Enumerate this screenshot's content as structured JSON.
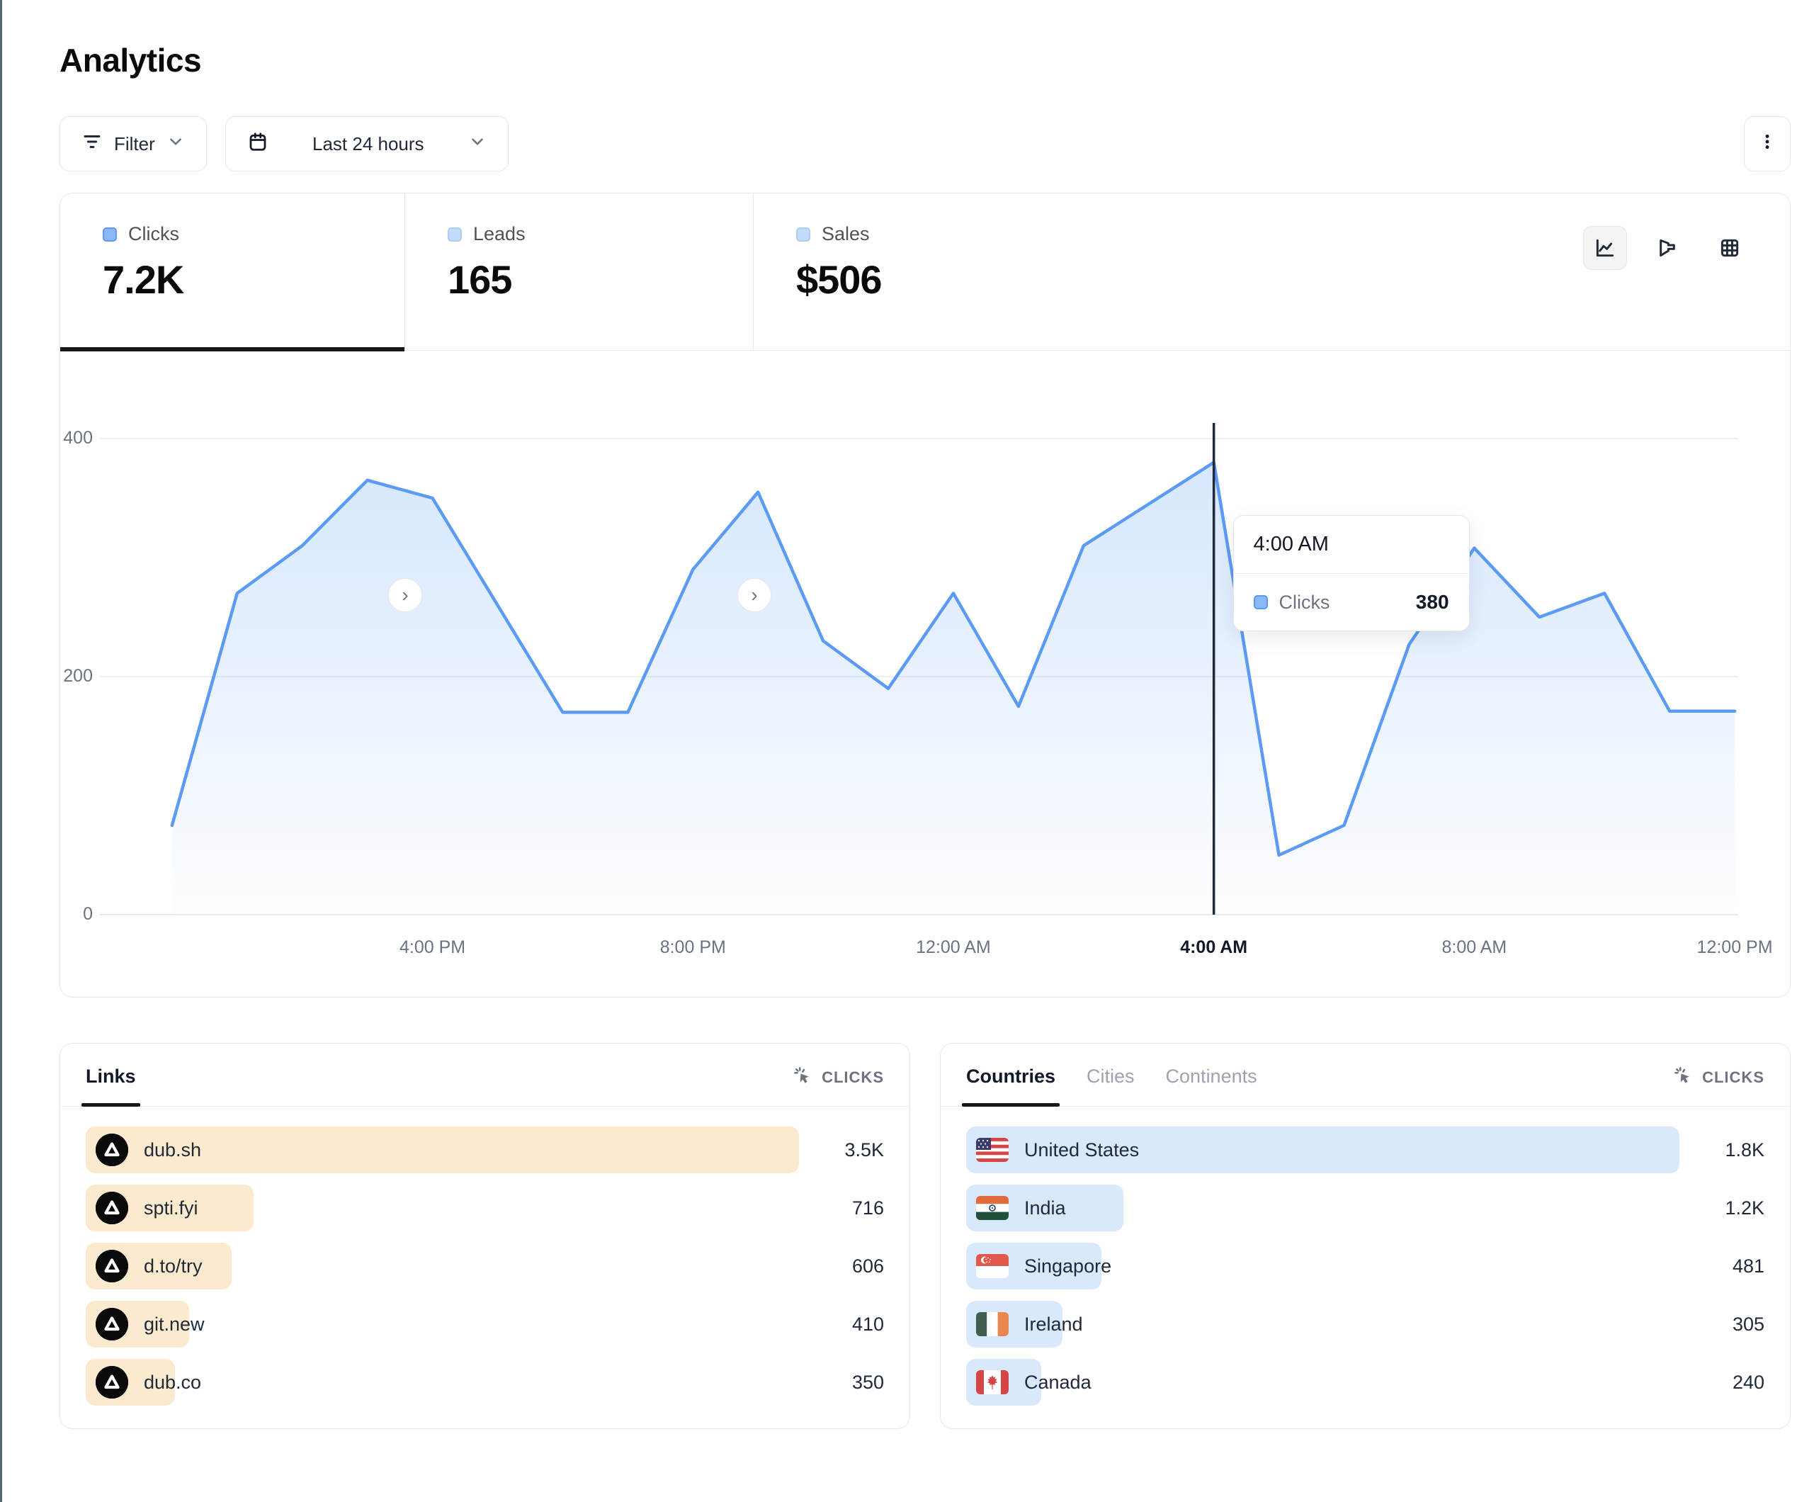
{
  "page": {
    "title": "Analytics"
  },
  "toolbar": {
    "filter_label": "Filter",
    "date_range_label": "Last 24 hours"
  },
  "metric_tabs": [
    {
      "label": "Clicks",
      "value": "7.2K",
      "active": true
    },
    {
      "label": "Leads",
      "value": "165",
      "active": false
    },
    {
      "label": "Sales",
      "value": "$506",
      "active": false
    }
  ],
  "view_toggles": [
    {
      "icon": "line-chart-icon",
      "active": true
    },
    {
      "icon": "funnel-chart-icon",
      "active": false
    },
    {
      "icon": "table-view-icon",
      "active": false
    }
  ],
  "chart_data": {
    "type": "area",
    "series_name": "Clicks",
    "x_hours": [
      "12:00 PM",
      "1:00 PM",
      "2:00 PM",
      "3:00 PM",
      "4:00 PM",
      "5:00 PM",
      "6:00 PM",
      "7:00 PM",
      "8:00 PM",
      "9:00 PM",
      "10:00 PM",
      "11:00 PM",
      "12:00 AM",
      "1:00 AM",
      "2:00 AM",
      "3:00 AM",
      "4:00 AM",
      "5:00 AM",
      "6:00 AM",
      "7:00 AM",
      "8:00 AM",
      "9:00 AM",
      "10:00 AM",
      "11:00 AM",
      "12:00 PM"
    ],
    "values": [
      75,
      270,
      310,
      365,
      350,
      260,
      170,
      170,
      290,
      355,
      230,
      190,
      270,
      175,
      310,
      345,
      380,
      50,
      75,
      227,
      308,
      250,
      270,
      171,
      171
    ],
    "ylim": [
      0,
      400
    ],
    "yticks": [
      400,
      200,
      0
    ],
    "xticks": [
      {
        "index": 4,
        "label": "4:00 PM"
      },
      {
        "index": 8,
        "label": "8:00 PM"
      },
      {
        "index": 12,
        "label": "12:00 AM"
      },
      {
        "index": 16,
        "label": "4:00 AM"
      },
      {
        "index": 20,
        "label": "8:00 AM"
      },
      {
        "index": 24,
        "label": "12:00 PM"
      }
    ],
    "grid": true,
    "legend_position": "none",
    "hover": {
      "index": 16,
      "time": "4:00 AM",
      "series": "Clicks",
      "value": "380"
    },
    "colors": {
      "line": "#5b9bf6",
      "area_top": "rgba(120,176,249,0.30)",
      "area_bottom": "rgba(120,176,249,0.02)",
      "hover_line": "#1f2937",
      "gridline": "#e8eaed"
    }
  },
  "links_panel": {
    "tab_label": "Links",
    "metric_label": "CLICKS",
    "rows": [
      {
        "label": "dub.sh",
        "value": "3.5K",
        "bar_pct": 100
      },
      {
        "label": "spti.fyi",
        "value": "716",
        "bar_pct": 23.5
      },
      {
        "label": "d.to/try",
        "value": "606",
        "bar_pct": 20.5
      },
      {
        "label": "git.new",
        "value": "410",
        "bar_pct": 14.5
      },
      {
        "label": "dub.co",
        "value": "350",
        "bar_pct": 12.5
      }
    ]
  },
  "countries_panel": {
    "tabs": [
      {
        "label": "Countries",
        "active": true
      },
      {
        "label": "Cities",
        "active": false
      },
      {
        "label": "Continents",
        "active": false
      }
    ],
    "metric_label": "CLICKS",
    "rows": [
      {
        "label": "United States",
        "flag": "us",
        "value": "1.8K",
        "bar_pct": 100
      },
      {
        "label": "India",
        "flag": "in",
        "value": "1.2K",
        "bar_pct": 22
      },
      {
        "label": "Singapore",
        "flag": "sg",
        "value": "481",
        "bar_pct": 19
      },
      {
        "label": "Ireland",
        "flag": "ie",
        "value": "305",
        "bar_pct": 13.5
      },
      {
        "label": "Canada",
        "flag": "ca",
        "value": "240",
        "bar_pct": 10.5
      }
    ]
  }
}
